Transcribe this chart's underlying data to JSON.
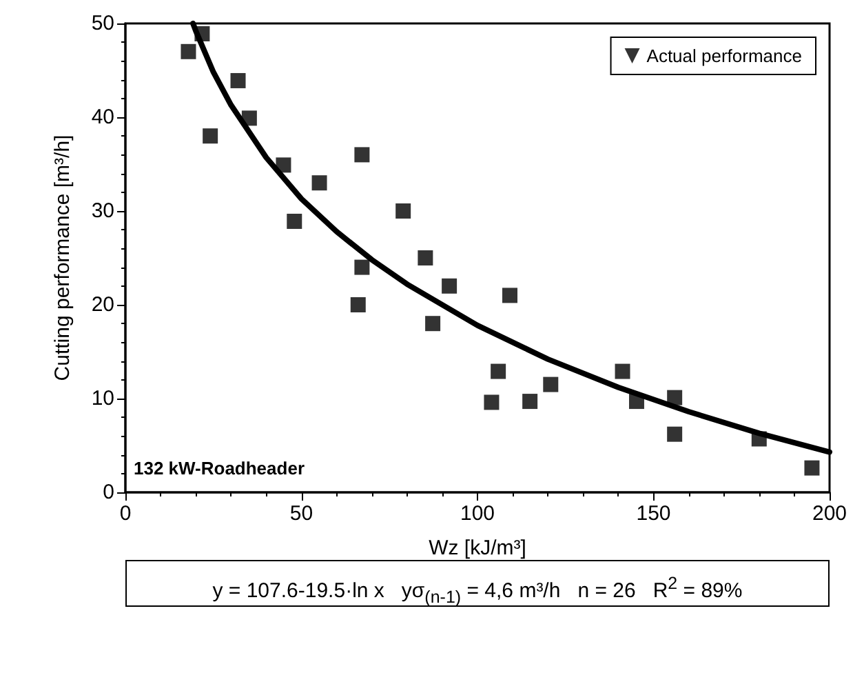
{
  "chart_data": {
    "type": "scatter",
    "xlabel": "Wz [kJ/m³]",
    "ylabel": "Cutting performance [m³/h]",
    "xlim": [
      0,
      200
    ],
    "xticks": [
      0,
      50,
      100,
      150,
      200
    ],
    "ylim": [
      0,
      50
    ],
    "yticks": [
      0,
      10,
      20,
      30,
      40,
      50
    ],
    "grid": false,
    "legend": "top right",
    "marker": "square",
    "series": [
      {
        "name": "Actual performance",
        "color": "#000000",
        "x": [
          17.9,
          21.8,
          32.0,
          35.2,
          24.1,
          67.2,
          44.9,
          55.1,
          48.0,
          78.9,
          67.2,
          85.2,
          66.1,
          87.3,
          92.0,
          109.2,
          105.9,
          104.0,
          114.9,
          120.8,
          141.2,
          145.2,
          156.0,
          156.0,
          180.0,
          195.0
        ],
        "values": [
          47.0,
          48.9,
          43.9,
          39.9,
          38.0,
          36.0,
          34.9,
          33.0,
          28.9,
          30.0,
          24.0,
          25.0,
          20.0,
          18.0,
          22.0,
          21.0,
          12.9,
          9.6,
          9.7,
          11.5,
          12.9,
          9.7,
          10.1,
          6.2,
          5.7,
          2.6
        ]
      },
      {
        "color": "#000000",
        "type": "line",
        "marker": "none",
        "line_style": "solid",
        "x": [
          19.2,
          20,
          25,
          30,
          40,
          50,
          60,
          70,
          80,
          100,
          120,
          140,
          160,
          180,
          200
        ],
        "values": [
          50.0,
          49.2,
          44.8,
          41.3,
          35.7,
          31.3,
          27.8,
          24.8,
          22.2,
          17.8,
          14.2,
          11.2,
          8.6,
          6.3,
          4.3
        ]
      }
    ],
    "annotations": [
      "132 kW-Roadheader",
      "y = 107.6-19.5·ln x   yσ$_{(n-1)}$ = 4,6 m³/h   n = 26   R$^{2}$ = 89%"
    ]
  }
}
